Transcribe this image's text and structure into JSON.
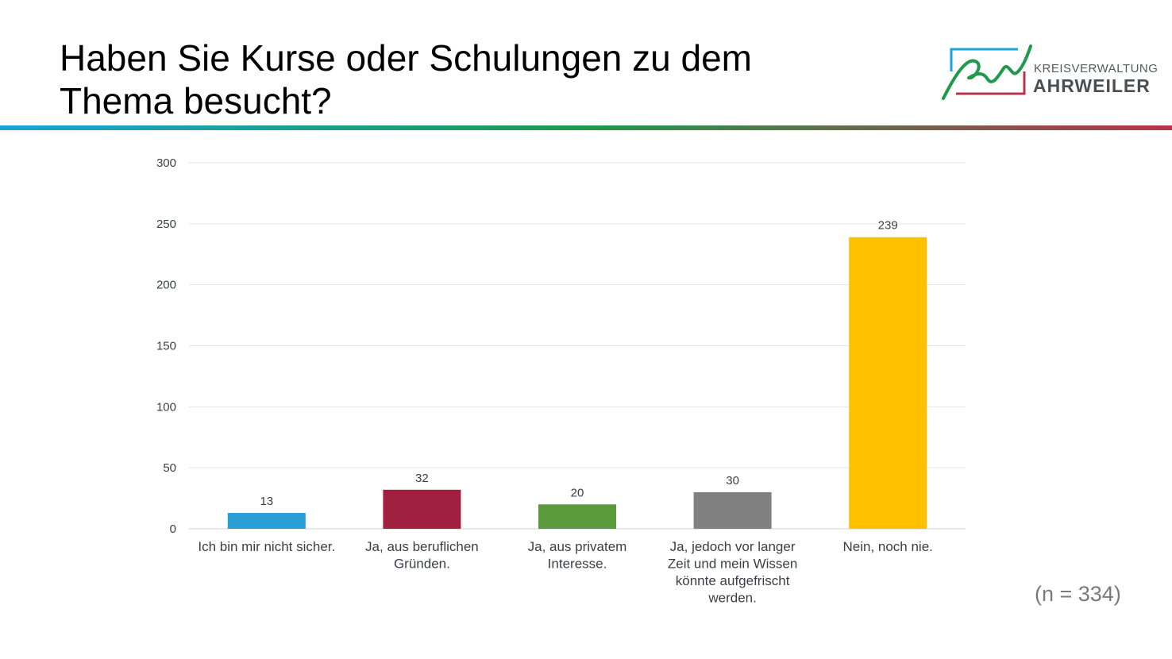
{
  "slide": {
    "title": "Haben Sie Kurse oder Schulungen zu dem Thema besucht?",
    "sample_size": "(n = 334)"
  },
  "logo": {
    "line1": "KREISVERWALTUNG",
    "line2": "AHRWEILER",
    "colors": {
      "green": "#1e9a4a",
      "blue": "#1aa3d9",
      "red": "#b8344a"
    }
  },
  "divider_colors": [
    "#1aa3d9",
    "#1e9a4a",
    "#b8344a"
  ],
  "chart_data": {
    "type": "bar",
    "title": "",
    "xlabel": "",
    "ylabel": "",
    "categories": [
      [
        "Ich bin mir nicht sicher."
      ],
      [
        "Ja, aus beruflichen",
        "Gründen."
      ],
      [
        "Ja, aus privatem",
        "Interesse."
      ],
      [
        "Ja, jedoch vor langer",
        "Zeit und mein Wissen",
        "könnte aufgefrischt",
        "werden."
      ],
      [
        "Nein, noch nie."
      ]
    ],
    "values": [
      13,
      32,
      20,
      30,
      239
    ],
    "colors": [
      "#2a9fd6",
      "#a0203f",
      "#5a9a3c",
      "#808080",
      "#ffc000"
    ],
    "ylim": [
      0,
      300
    ],
    "yticks": [
      0,
      50,
      100,
      150,
      200,
      250,
      300
    ],
    "grid": true,
    "data_labels": true
  }
}
